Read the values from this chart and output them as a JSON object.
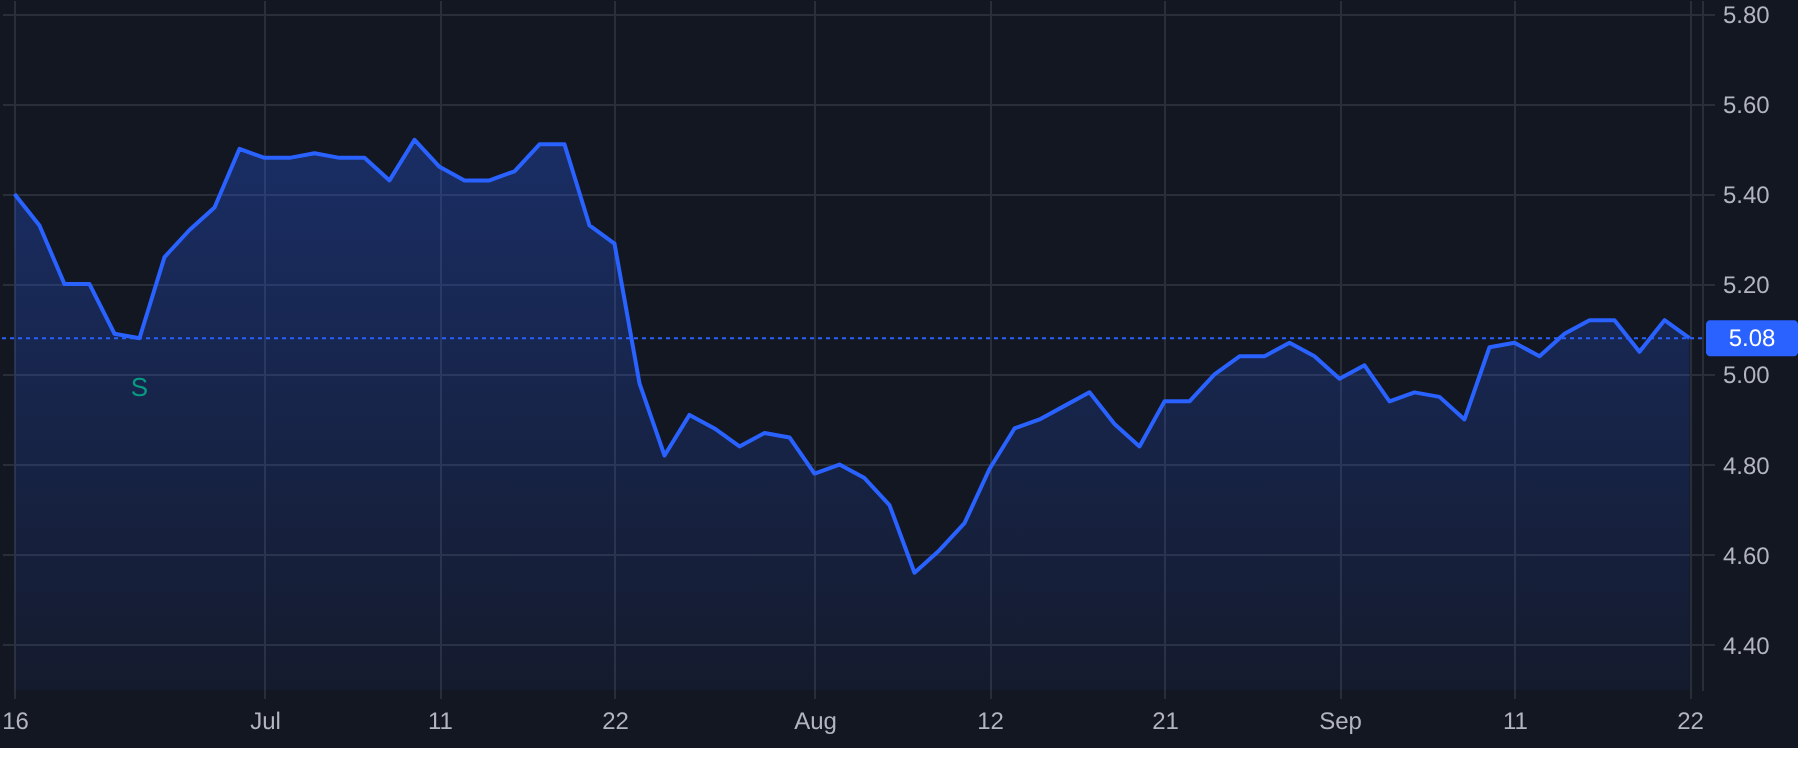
{
  "chart_data": {
    "type": "area",
    "categories": [
      "16",
      null,
      null,
      null,
      null,
      null,
      null,
      null,
      null,
      null,
      "Jul",
      null,
      null,
      null,
      null,
      null,
      null,
      "11",
      null,
      null,
      null,
      null,
      null,
      null,
      "22",
      null,
      null,
      null,
      null,
      null,
      null,
      null,
      "Aug",
      null,
      null,
      null,
      null,
      null,
      null,
      "12",
      null,
      null,
      null,
      null,
      null,
      null,
      "21",
      null,
      null,
      null,
      null,
      null,
      null,
      "Sep",
      null,
      null,
      null,
      null,
      null,
      null,
      "11",
      null,
      null,
      null,
      null,
      null,
      null,
      "22"
    ],
    "series": [
      {
        "color": "#2962ff",
        "values": [
          5.4,
          5.33,
          5.2,
          5.2,
          5.09,
          5.08,
          5.26,
          5.32,
          5.37,
          5.5,
          5.48,
          5.48,
          5.49,
          5.48,
          5.48,
          5.43,
          5.52,
          5.46,
          5.43,
          5.43,
          5.45,
          5.51,
          5.51,
          5.33,
          5.29,
          4.98,
          4.82,
          4.91,
          4.88,
          4.84,
          4.87,
          4.86,
          4.78,
          4.8,
          4.77,
          4.71,
          4.56,
          4.61,
          4.67,
          4.79,
          4.88,
          4.9,
          4.93,
          4.96,
          4.89,
          4.84,
          4.94,
          4.94,
          5.0,
          5.04,
          5.04,
          5.07,
          5.04,
          4.99,
          5.02,
          4.94,
          4.96,
          4.95,
          4.9,
          5.06,
          5.07,
          5.04,
          5.09,
          5.12,
          5.12,
          5.05,
          5.12,
          5.08
        ]
      }
    ],
    "ylim": [
      4.3,
      5.83
    ],
    "yticks": [
      {
        "value": 4.4,
        "label": "4.40"
      },
      {
        "value": 4.6,
        "label": "4.60"
      },
      {
        "value": 4.8,
        "label": "4.80"
      },
      {
        "value": 5.0,
        "label": "5.00"
      },
      {
        "value": 5.2,
        "label": "5.20"
      },
      {
        "value": 5.4,
        "label": "5.40"
      },
      {
        "value": 5.6,
        "label": "5.60"
      },
      {
        "value": 5.8,
        "label": "5.80"
      }
    ],
    "ref_lines": [
      {
        "axis": "y",
        "value": 5.08,
        "label": "5.08",
        "color": "#2962ff",
        "line_style": "dotted"
      }
    ],
    "annotations": [
      {
        "text": "S",
        "y": 5.08
      }
    ],
    "grid": true
  }
}
